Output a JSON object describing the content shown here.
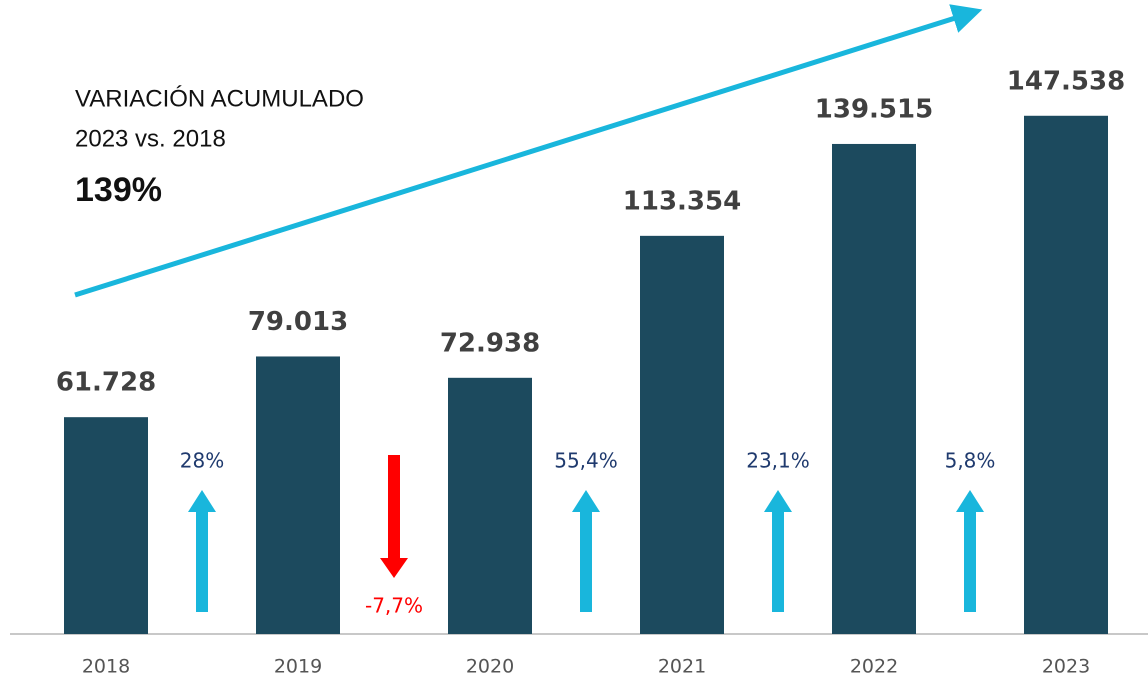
{
  "chart_data": {
    "type": "bar",
    "title": "VARIACIÓN ACUMULADO",
    "subtitle": "2023 vs. 2018",
    "annotation": "139%",
    "categories": [
      "2018",
      "2019",
      "2020",
      "2021",
      "2022",
      "2023"
    ],
    "values": [
      61728,
      79013,
      72938,
      113354,
      139515,
      147538
    ],
    "value_labels": [
      "61.728",
      "79.013",
      "72.938",
      "113.354",
      "139.515",
      "147.538"
    ],
    "color": "#1c4a5e",
    "ylim": [
      0,
      160000
    ],
    "changes": [
      {
        "value": 28,
        "label": "28%"
      },
      {
        "value": -7.7,
        "label": "-7,7%"
      },
      {
        "value": 55.4,
        "label": "55,4%"
      },
      {
        "value": 23.1,
        "label": "23,1%"
      },
      {
        "value": 5.8,
        "label": "5,8%"
      }
    ],
    "up_color": "#19b6dc",
    "down_color": "#ff0000"
  }
}
